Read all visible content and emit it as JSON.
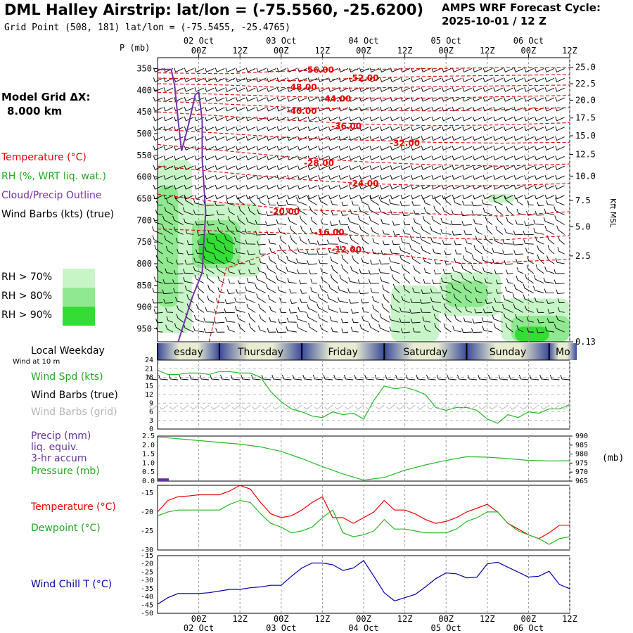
{
  "header": {
    "title": "DML Halley Airstrip:  lat/lon = (-75.5560, -25.6200)",
    "subtitle": "Grid Point (508, 181) lat/lon = (-75.5455, -25.4765)",
    "cycle_line1": "AMPS WRF Forecast Cycle:",
    "cycle_line2": "2025-10-01 / 12  Z"
  },
  "side": {
    "model_grid_line1": "Model Grid ΔX:",
    "model_grid_line2": "8.000 km",
    "legend_temperature": "Temperature (°C)",
    "legend_rh": "RH (%, WRT liq. wat.)",
    "legend_cloud": "Cloud/Precip Outline",
    "legend_wind": "Wind Barbs (kts) (true)",
    "rh70": "RH > 70%",
    "rh80": "RH > 80%",
    "rh90": "RH > 90%",
    "local_weekday": "Local Weekday",
    "wind_at": "Wind at 10 m",
    "wind_spd": "Wind Spd (kts)",
    "wind_barbs_true": "Wind Barbs (true)",
    "wind_barbs_grid": "Wind Barbs (grid)",
    "precip1": "Precip (mm)",
    "precip2": "liq. equiv.",
    "precip3": "3-hr accum",
    "pressure": "Pressure (mb)",
    "temperature": "Temperature (°C)",
    "dewpoint": "Dewpoint (°C)",
    "windchill": "Wind Chill T (°C)",
    "p_mb": "P (mb)",
    "kft": "Kft MSL",
    "mb_unit": "(mb)"
  },
  "colors": {
    "temp": "#ee0000",
    "rh70": "#c8f5c8",
    "rh80": "#90e890",
    "rh90": "#33dd33",
    "cloud": "#7733aa",
    "green": "#22bb22",
    "wind_grid": "#b8b8b8",
    "windchill": "#0000aa",
    "precip": "#663399"
  },
  "chart_data": [
    {
      "type": "cross-section",
      "title": "Time-height cross section",
      "time_ticks": [
        "00Z",
        "12Z",
        "00Z",
        "12Z",
        "00Z",
        "12Z",
        "00Z",
        "12Z",
        "00Z",
        "12Z"
      ],
      "time_tick_hours": [
        12,
        24,
        36,
        48,
        60,
        72,
        84,
        96,
        108,
        120
      ],
      "date_labels_top": [
        "02 Oct",
        "03 Oct",
        "04 Oct",
        "05 Oct",
        "06 Oct"
      ],
      "date_labels_bottom": [
        "02 Oct",
        "03 Oct",
        "04 Oct",
        "05 Oct",
        "06 Oct"
      ],
      "date_label_hours": [
        12,
        36,
        60,
        84,
        108
      ],
      "pressure_levels": [
        350,
        400,
        450,
        500,
        550,
        600,
        650,
        700,
        750,
        800,
        850,
        900,
        950
      ],
      "pressure_range": [
        325,
        980
      ],
      "height_kft": [
        "25.0",
        "22.5",
        "20.0",
        "17.5",
        "15.0",
        "12.5",
        "10.0",
        "7.5",
        "5.0",
        "2.5",
        "0.13"
      ],
      "height_kft_pressure": [
        347,
        385,
        423,
        464,
        505,
        548,
        598,
        654,
        715,
        782,
        980
      ],
      "temperature_contours": [
        {
          "label": "-56.00",
          "pts": [
            [
              0,
              360
            ],
            [
              20,
              362
            ],
            [
              40,
              355
            ],
            [
              60,
              352
            ],
            [
              80,
              350
            ],
            [
              100,
              348
            ],
            [
              120,
              347
            ]
          ],
          "lx": 47,
          "lp": 353
        },
        {
          "label": "-52.00",
          "pts": [
            [
              0,
              372
            ],
            [
              20,
              375
            ],
            [
              40,
              378
            ],
            [
              60,
              372
            ],
            [
              80,
              368
            ],
            [
              100,
              366
            ],
            [
              120,
              364
            ]
          ],
          "lx": 60,
          "lp": 372
        },
        {
          "label": "-48.00",
          "pts": [
            [
              0,
              385
            ],
            [
              20,
              388
            ],
            [
              40,
              395
            ],
            [
              60,
              395
            ],
            [
              80,
              392
            ],
            [
              100,
              390
            ],
            [
              120,
              388
            ]
          ],
          "lx": 42,
          "lp": 393
        },
        {
          "label": "-44.00",
          "pts": [
            [
              0,
              405
            ],
            [
              20,
              410
            ],
            [
              40,
              415
            ],
            [
              60,
              418
            ],
            [
              80,
              418
            ],
            [
              100,
              415
            ],
            [
              120,
              412
            ]
          ],
          "lx": 52,
          "lp": 420
        },
        {
          "label": "-40.00",
          "pts": [
            [
              0,
              425
            ],
            [
              20,
              432
            ],
            [
              40,
              440
            ],
            [
              60,
              445
            ],
            [
              80,
              448
            ],
            [
              100,
              445
            ],
            [
              120,
              440
            ]
          ],
          "lx": 42,
          "lp": 448
        },
        {
          "label": "-36.00",
          "pts": [
            [
              0,
              450
            ],
            [
              20,
              460
            ],
            [
              40,
              470
            ],
            [
              60,
              478
            ],
            [
              80,
              482
            ],
            [
              100,
              480
            ],
            [
              120,
              475
            ]
          ],
          "lx": 55,
          "lp": 483
        },
        {
          "label": "-32.00",
          "pts": [
            [
              0,
              490
            ],
            [
              20,
              500
            ],
            [
              40,
              510
            ],
            [
              60,
              515
            ],
            [
              80,
              520
            ],
            [
              100,
              522
            ],
            [
              120,
              520
            ]
          ],
          "lx": 72,
          "lp": 522
        },
        {
          "label": "-28.00",
          "pts": [
            [
              0,
              525
            ],
            [
              20,
              540
            ],
            [
              40,
              555
            ],
            [
              60,
              565
            ],
            [
              80,
              572
            ],
            [
              100,
              575
            ],
            [
              120,
              570
            ]
          ],
          "lx": 47,
          "lp": 568
        },
        {
          "label": "-24.00",
          "pts": [
            [
              0,
              575
            ],
            [
              20,
              590
            ],
            [
              40,
              605
            ],
            [
              60,
              615
            ],
            [
              80,
              620
            ],
            [
              100,
              620
            ],
            [
              120,
              615
            ]
          ],
          "lx": 60,
          "lp": 615
        },
        {
          "label": "-20.00",
          "pts": [
            [
              0,
              640
            ],
            [
              20,
              660
            ],
            [
              40,
              675
            ],
            [
              60,
              680
            ],
            [
              80,
              685
            ],
            [
              100,
              690
            ],
            [
              120,
              680
            ]
          ],
          "lx": 37,
          "lp": 680
        },
        {
          "label": "-16.00",
          "pts": [
            [
              0,
              720
            ],
            [
              20,
              725
            ],
            [
              40,
              730
            ],
            [
              60,
              735
            ],
            [
              80,
              740
            ],
            [
              100,
              745
            ],
            [
              120,
              735
            ]
          ],
          "lx": 50,
          "lp": 728
        },
        {
          "label": "-12.00",
          "pts": [
            [
              15,
              980
            ],
            [
              20,
              810
            ],
            [
              35,
              770
            ],
            [
              50,
              765
            ],
            [
              70,
              780
            ],
            [
              90,
              800
            ],
            [
              120,
              790
            ]
          ],
          "lx": 55,
          "lp": 768
        }
      ],
      "rh_patches": [
        {
          "level": 70,
          "x0": 0,
          "x1": 10,
          "p0": 560,
          "p1": 960
        },
        {
          "level": 70,
          "x0": 8,
          "x1": 30,
          "p0": 660,
          "p1": 830
        },
        {
          "level": 80,
          "x0": 0,
          "x1": 6,
          "p0": 620,
          "p1": 900
        },
        {
          "level": 80,
          "x0": 10,
          "x1": 24,
          "p0": 700,
          "p1": 810
        },
        {
          "level": 90,
          "x0": 12,
          "x1": 22,
          "p0": 730,
          "p1": 800
        },
        {
          "level": 70,
          "x0": 82,
          "x1": 100,
          "p0": 820,
          "p1": 920
        },
        {
          "level": 80,
          "x0": 84,
          "x1": 96,
          "p0": 840,
          "p1": 900
        },
        {
          "level": 70,
          "x0": 68,
          "x1": 82,
          "p0": 850,
          "p1": 980
        },
        {
          "level": 70,
          "x0": 100,
          "x1": 120,
          "p0": 880,
          "p1": 980
        },
        {
          "level": 80,
          "x0": 103,
          "x1": 120,
          "p0": 920,
          "p1": 980
        },
        {
          "level": 90,
          "x0": 104,
          "x1": 114,
          "p0": 945,
          "p1": 980
        },
        {
          "level": 70,
          "x0": 96,
          "x1": 104,
          "p0": 640,
          "p1": 660
        }
      ],
      "cloud_outline": [
        [
          0,
          352
        ],
        [
          4,
          352
        ],
        [
          5,
          390
        ],
        [
          6,
          470
        ],
        [
          7,
          540
        ],
        [
          9,
          480
        ],
        [
          11,
          410
        ],
        [
          12,
          405
        ],
        [
          13,
          470
        ],
        [
          13,
          560
        ],
        [
          14,
          680
        ],
        [
          13,
          820
        ],
        [
          10,
          880
        ],
        [
          8,
          930
        ],
        [
          6,
          980
        ]
      ]
    },
    {
      "type": "weekday-strip",
      "days": [
        "esday",
        "Thursday",
        "Friday",
        "Saturday",
        "Sunday",
        "Mo"
      ],
      "day_start_hours": [
        -6,
        18,
        42,
        66,
        90,
        114
      ]
    },
    {
      "type": "line",
      "title": "Wind Spd (kts)",
      "x": [
        0,
        3,
        6,
        9,
        12,
        15,
        18,
        21,
        24,
        27,
        30,
        33,
        36,
        39,
        42,
        45,
        48,
        51,
        54,
        57,
        60,
        63,
        66,
        69,
        72,
        75,
        78,
        81,
        84,
        87,
        90,
        93,
        96,
        99,
        102,
        105,
        108,
        111,
        114,
        117,
        120
      ],
      "values": [
        20.5,
        19,
        19,
        19.5,
        19.5,
        19,
        20,
        20,
        19.5,
        19.5,
        18,
        13,
        9.5,
        7,
        6,
        4.5,
        4,
        6,
        5,
        5.5,
        3.5,
        10,
        15,
        14,
        14.5,
        13.5,
        12,
        7.5,
        6.5,
        7.5,
        7.5,
        6.5,
        3.5,
        2,
        5,
        4,
        6,
        5.5,
        7,
        7,
        8.5
      ],
      "ylim": [
        0,
        24
      ],
      "yticks": [
        0,
        3,
        6,
        9,
        12,
        15,
        18,
        21,
        24
      ]
    },
    {
      "type": "line",
      "title": "Pressure (mb)",
      "x": [
        0,
        6,
        12,
        18,
        24,
        30,
        36,
        42,
        48,
        54,
        60,
        66,
        72,
        78,
        84,
        90,
        96,
        102,
        108,
        114,
        120
      ],
      "values": [
        989.5,
        988.5,
        987.5,
        986.5,
        985.5,
        984,
        981.5,
        977.5,
        973,
        969,
        965.5,
        967,
        971,
        974,
        976.5,
        978.5,
        978.3,
        977.5,
        976.5,
        976.2,
        976.3
      ],
      "ylim": [
        965,
        990
      ],
      "yticks": [
        965,
        970,
        975,
        980,
        985,
        990
      ],
      "precip_ticks": [
        "0.0",
        "0.5",
        "1.0",
        "1.5",
        "2.0",
        "2.5"
      ],
      "precip_values": [
        {
          "x": 0,
          "mm": 0.15
        }
      ]
    },
    {
      "type": "line",
      "title": "Temperature / Dewpoint (°C)",
      "x": [
        0,
        3,
        6,
        9,
        12,
        15,
        18,
        21,
        24,
        27,
        30,
        33,
        36,
        39,
        42,
        45,
        48,
        51,
        54,
        57,
        60,
        63,
        66,
        69,
        72,
        75,
        78,
        81,
        84,
        87,
        90,
        93,
        96,
        99,
        102,
        105,
        108,
        111,
        114,
        117,
        120
      ],
      "series": [
        {
          "name": "Temperature",
          "values": [
            -20,
            -17,
            -16,
            -15.8,
            -15.5,
            -15.5,
            -15.5,
            -14.5,
            -13,
            -14,
            -17.5,
            -20.5,
            -21.5,
            -21,
            -19.5,
            -17.5,
            -16,
            -21.5,
            -21.5,
            -23,
            -21.5,
            -20,
            -17,
            -19.5,
            -19.5,
            -20.5,
            -22,
            -23,
            -22.5,
            -21.5,
            -20,
            -19,
            -18,
            -20,
            -23,
            -24.5,
            -26,
            -27,
            -25.5,
            -23.5,
            -23.5
          ]
        },
        {
          "name": "Dewpoint",
          "values": [
            -21,
            -20,
            -19.5,
            -19.5,
            -19.5,
            -19.5,
            -19.5,
            -18,
            -17,
            -17.5,
            -20.5,
            -23,
            -24,
            -25.5,
            -25,
            -24,
            -21.5,
            -19.5,
            -25.5,
            -26.5,
            -26,
            -25,
            -22,
            -24.5,
            -24.5,
            -25,
            -25.5,
            -25.5,
            -25.5,
            -24.5,
            -22.5,
            -21.5,
            -20,
            -20,
            -23,
            -25,
            -26,
            -27,
            -28.5,
            -27,
            -26.5
          ]
        }
      ],
      "ylim": [
        -30,
        -13
      ],
      "yticks": [
        -30,
        -25,
        -20,
        -15
      ]
    },
    {
      "type": "line",
      "title": "Wind Chill T (°C)",
      "x": [
        0,
        3,
        6,
        9,
        12,
        15,
        18,
        21,
        24,
        27,
        30,
        33,
        36,
        39,
        42,
        45,
        48,
        51,
        54,
        57,
        60,
        63,
        66,
        69,
        72,
        75,
        78,
        81,
        84,
        87,
        90,
        93,
        96,
        99,
        102,
        105,
        108,
        111,
        114,
        117,
        120
      ],
      "values": [
        -44.5,
        -40.5,
        -38,
        -38,
        -38,
        -37.5,
        -36.5,
        -35.5,
        -35.5,
        -34.5,
        -34,
        -33,
        -33,
        -27.5,
        -22.5,
        -19.5,
        -19.5,
        -20.5,
        -24,
        -22.5,
        -18,
        -27.5,
        -37.5,
        -42.5,
        -40.5,
        -38.5,
        -34,
        -29,
        -25.5,
        -26,
        -28.5,
        -28,
        -20,
        -19,
        -22,
        -25,
        -28,
        -27.5,
        -24.5,
        -32.5,
        -35
      ],
      "ylim": [
        -50,
        -15
      ],
      "yticks": [
        -50,
        -45,
        -40,
        -35,
        -30,
        -25,
        -20,
        -15
      ]
    }
  ]
}
